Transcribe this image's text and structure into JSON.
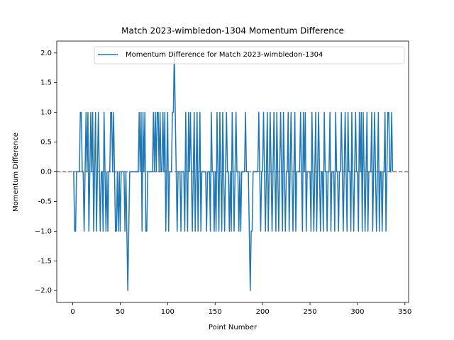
{
  "chart_data": {
    "type": "line",
    "title": "Match 2023-wimbledon-1304 Momentum Difference",
    "xlabel": "Point Number",
    "ylabel": "Momentum Difference",
    "xlim": [
      -16.85,
      353.85
    ],
    "ylim": [
      -2.2,
      2.2
    ],
    "xticks": [
      0,
      50,
      100,
      150,
      200,
      250,
      300,
      350
    ],
    "yticks": [
      {
        "value": -2,
        "label": "−2.0"
      },
      -1.5,
      {
        "value": -1,
        "label": "−1.0"
      },
      -0.5,
      {
        "value": 0,
        "label": "0.0"
      },
      0.5,
      {
        "value": 1,
        "label": "1.0"
      },
      1.5,
      {
        "value": 2,
        "label": "2.0"
      }
    ],
    "reference_line": 0,
    "reference_color": "#808080",
    "legend": "upper right",
    "x": [
      0,
      1,
      2,
      3,
      4,
      5,
      6,
      7,
      8,
      9,
      10,
      11,
      12,
      13,
      14,
      15,
      16,
      17,
      18,
      19,
      20,
      21,
      22,
      23,
      24,
      25,
      26,
      27,
      28,
      29,
      30,
      31,
      32,
      33,
      34,
      35,
      36,
      37,
      38,
      39,
      40,
      41,
      42,
      43,
      44,
      45,
      46,
      47,
      48,
      49,
      50,
      51,
      52,
      53,
      54,
      55,
      56,
      57,
      58,
      59,
      60,
      61,
      62,
      63,
      64,
      65,
      66,
      67,
      68,
      69,
      70,
      71,
      72,
      73,
      74,
      75,
      76,
      77,
      78,
      79,
      80,
      81,
      82,
      83,
      84,
      85,
      86,
      87,
      88,
      89,
      90,
      91,
      92,
      93,
      94,
      95,
      96,
      97,
      98,
      99,
      100,
      101,
      102,
      103,
      104,
      105,
      106,
      107,
      108,
      109,
      110,
      111,
      112,
      113,
      114,
      115,
      116,
      117,
      118,
      119,
      120,
      121,
      122,
      123,
      124,
      125,
      126,
      127,
      128,
      129,
      130,
      131,
      132,
      133,
      134,
      135,
      136,
      137,
      138,
      139,
      140,
      141,
      142,
      143,
      144,
      145,
      146,
      147,
      148,
      149,
      150,
      151,
      152,
      153,
      154,
      155,
      156,
      157,
      158,
      159,
      160,
      161,
      162,
      163,
      164,
      165,
      166,
      167,
      168,
      169,
      170,
      171,
      172,
      173,
      174,
      175,
      176,
      177,
      178,
      179,
      180,
      181,
      182,
      183,
      184,
      185,
      186,
      187,
      188,
      189,
      190,
      191,
      192,
      193,
      194,
      195,
      196,
      197,
      198,
      199,
      200,
      201,
      202,
      203,
      204,
      205,
      206,
      207,
      208,
      209,
      210,
      211,
      212,
      213,
      214,
      215,
      216,
      217,
      218,
      219,
      220,
      221,
      222,
      223,
      224,
      225,
      226,
      227,
      228,
      229,
      230,
      231,
      232,
      233,
      234,
      235,
      236,
      237,
      238,
      239,
      240,
      241,
      242,
      243,
      244,
      245,
      246,
      247,
      248,
      249,
      250,
      251,
      252,
      253,
      254,
      255,
      256,
      257,
      258,
      259,
      260,
      261,
      262,
      263,
      264,
      265,
      266,
      267,
      268,
      269,
      270,
      271,
      272,
      273,
      274,
      275,
      276,
      277,
      278,
      279,
      280,
      281,
      282,
      283,
      284,
      285,
      286,
      287,
      288,
      289,
      290,
      291,
      292,
      293,
      294,
      295,
      296,
      297,
      298,
      299,
      300,
      301,
      302,
      303,
      304,
      305,
      306,
      307,
      308,
      309,
      310,
      311,
      312,
      313,
      314,
      315,
      316,
      317,
      318,
      319,
      320,
      321,
      322,
      323,
      324,
      325,
      326,
      327,
      328,
      329,
      330,
      331,
      332,
      333,
      334,
      335,
      336,
      337
    ],
    "series": [
      {
        "name": "Momentum Difference for Match 2023-wimbledon-1304",
        "color": "#1f77b4",
        "values": [
          0,
          0,
          -1,
          -1,
          0,
          0,
          0,
          0,
          1,
          1,
          0,
          0,
          -1,
          0,
          1,
          0,
          1,
          -1,
          0,
          1,
          0,
          1,
          -1,
          0,
          1,
          -1,
          0,
          1,
          0,
          -1,
          0,
          0,
          -1,
          1,
          0,
          -1,
          0,
          -1,
          0,
          0,
          1,
          1,
          0,
          1,
          0,
          -1,
          -1,
          0,
          -1,
          0,
          -1,
          0,
          0,
          0,
          0,
          -1,
          0,
          -1,
          -2,
          -1,
          0,
          0,
          0,
          0,
          0,
          0,
          0,
          0,
          0,
          0,
          1,
          0,
          1,
          -1,
          1,
          0,
          1,
          -1,
          -1,
          0,
          0,
          0,
          0,
          0,
          0,
          1,
          0,
          1,
          0,
          1,
          1,
          0,
          1,
          0,
          0,
          1,
          0,
          1,
          -1,
          0,
          1,
          -1,
          0,
          0,
          0,
          1,
          1,
          2,
          1,
          0,
          -1,
          0,
          0,
          0,
          -1,
          0,
          0,
          0,
          -1,
          1,
          0,
          -1,
          1,
          0,
          1,
          0,
          -1,
          0,
          1,
          -1,
          0,
          1,
          -1,
          0,
          1,
          -1,
          0,
          0,
          0,
          0,
          0,
          -1,
          0,
          0,
          0,
          -1,
          1,
          0,
          0,
          -1,
          0,
          -1,
          1,
          0,
          -1,
          1,
          0,
          -1,
          1,
          0,
          -1,
          0,
          1,
          0,
          0,
          -1,
          0,
          -1,
          1,
          0,
          -1,
          0,
          1,
          0,
          0,
          -1,
          0,
          -1,
          0,
          0,
          0,
          0,
          1,
          0,
          0,
          0,
          -1,
          -2,
          -1,
          -1,
          0,
          0,
          0,
          0,
          0,
          0,
          1,
          0,
          -1,
          0,
          0,
          1,
          0,
          -1,
          0,
          1,
          -1,
          0,
          1,
          0,
          -1,
          0,
          1,
          0,
          -1,
          1,
          0,
          -1,
          0,
          1,
          0,
          -1,
          1,
          0,
          -1,
          0,
          0,
          1,
          -1,
          0,
          1,
          0,
          -1,
          0,
          1,
          -1,
          0,
          0,
          0,
          0,
          1,
          0,
          -1,
          1,
          0,
          1,
          -1,
          0,
          0,
          0,
          0,
          -1,
          1,
          0,
          -1,
          0,
          1,
          -1,
          0,
          1,
          0,
          -1,
          0,
          0,
          -1,
          1,
          0,
          0,
          -1,
          0,
          0,
          1,
          -1,
          0,
          0,
          0,
          -1,
          1,
          0,
          0,
          -1,
          0,
          0,
          1,
          0,
          -1,
          0,
          1,
          0,
          -1,
          1,
          0,
          0,
          -1,
          1,
          0,
          -1,
          0,
          1,
          0,
          0,
          -1,
          1,
          0,
          1,
          -1,
          1,
          0,
          -1,
          0,
          1,
          -1,
          0,
          0,
          0,
          1,
          -1,
          0,
          1,
          0,
          -1,
          0,
          1,
          -1,
          0,
          0,
          -1,
          0,
          0,
          1,
          -1,
          0,
          1,
          1,
          0,
          0,
          1,
          0
        ]
      }
    ]
  }
}
